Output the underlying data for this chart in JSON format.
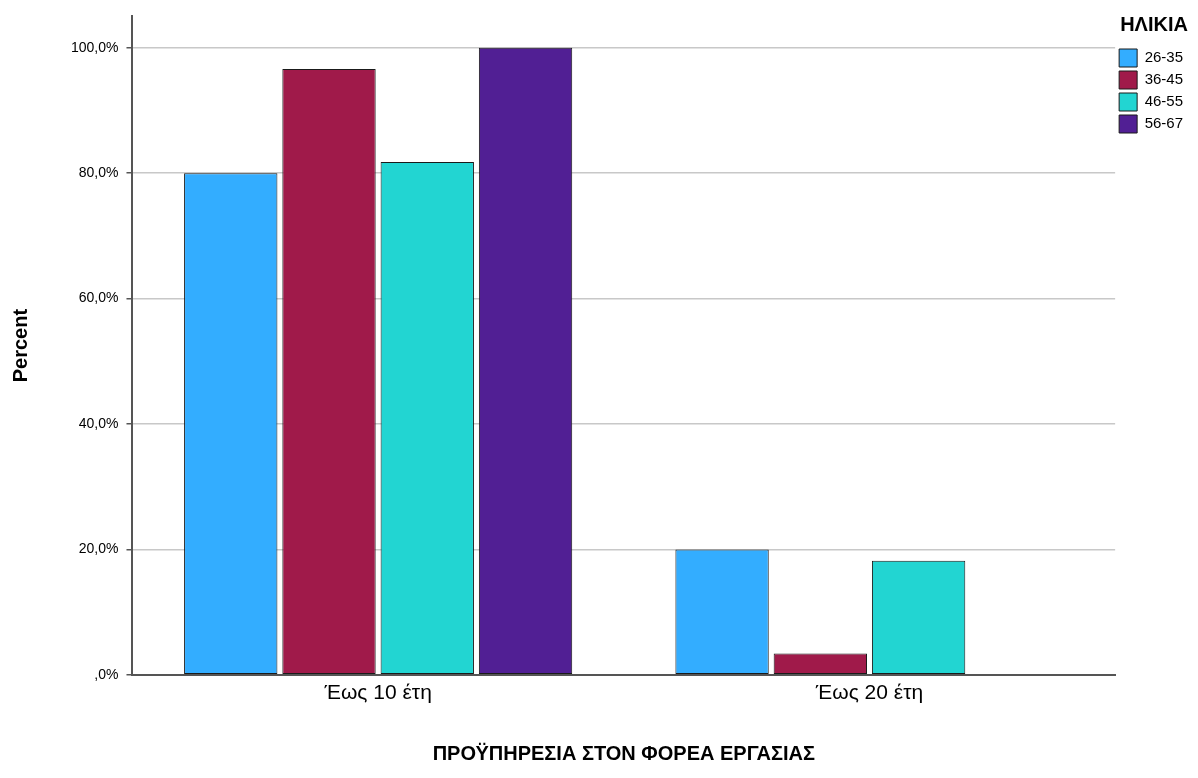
{
  "chart_data": {
    "type": "bar",
    "xlabel": "ΠΡΟΫΠΗΡΕΣΙΑ ΣΤΟΝ ΦΟΡΕΑ ΕΡΓΑΣΙΑΣ",
    "ylabel": "Percent",
    "legend_title": "ΗΛΙΚΙΑ",
    "categories": [
      "Έως 10 έτη",
      "Έως 20 έτη"
    ],
    "series": [
      {
        "name": "26-35",
        "color": "#33adff",
        "values": [
          80,
          20
        ]
      },
      {
        "name": "36-45",
        "color": "#a01a4a",
        "values": [
          96.6,
          3.4
        ]
      },
      {
        "name": "46-55",
        "color": "#22d5d2",
        "values": [
          81.8,
          18.2
        ]
      },
      {
        "name": "56-67",
        "color": "#511f94",
        "values": [
          100,
          0
        ]
      }
    ],
    "ylim": [
      0,
      105
    ],
    "yticks": [
      {
        "value": 0,
        "label": ",0%"
      },
      {
        "value": 20,
        "label": "20,0%"
      },
      {
        "value": 40,
        "label": "40,0%"
      },
      {
        "value": 60,
        "label": "60,0%"
      },
      {
        "value": 80,
        "label": "80,0%"
      },
      {
        "value": 100,
        "label": "100,0%"
      }
    ],
    "grid": "y",
    "legend": "top right"
  }
}
